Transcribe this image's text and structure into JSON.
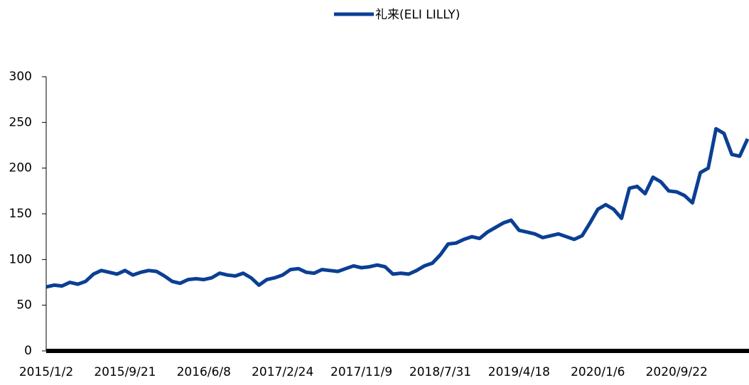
{
  "chart_data": {
    "type": "line",
    "categories": [
      "2015/1/2",
      null,
      null,
      null,
      null,
      null,
      null,
      null,
      null,
      null,
      "2015/9/21",
      null,
      null,
      null,
      null,
      null,
      null,
      null,
      null,
      null,
      "2016/6/8",
      null,
      null,
      null,
      null,
      null,
      null,
      null,
      null,
      null,
      "2017/2/24",
      null,
      null,
      null,
      null,
      null,
      null,
      null,
      null,
      null,
      "2017/11/9",
      null,
      null,
      null,
      null,
      null,
      null,
      null,
      null,
      null,
      "2018/7/31",
      null,
      null,
      null,
      null,
      null,
      null,
      null,
      null,
      null,
      "2019/4/18",
      null,
      null,
      null,
      null,
      null,
      null,
      null,
      null,
      null,
      "2020/1/6",
      null,
      null,
      null,
      null,
      null,
      null,
      null,
      null,
      null,
      "2020/9/22",
      null,
      null,
      null,
      null,
      null,
      null,
      null,
      null,
      null
    ],
    "series": [
      {
        "name": "礼来(ELI LILLY)",
        "color": "#0b3f94",
        "values": [
          70,
          72,
          71,
          75,
          73,
          76,
          84,
          88,
          86,
          84,
          88,
          83,
          86,
          88,
          87,
          82,
          76,
          74,
          78,
          79,
          78,
          80,
          85,
          83,
          82,
          85,
          80,
          72,
          78,
          80,
          83,
          89,
          90,
          86,
          85,
          89,
          88,
          87,
          90,
          93,
          91,
          92,
          94,
          92,
          84,
          85,
          84,
          88,
          93,
          96,
          105,
          117,
          118,
          122,
          125,
          123,
          130,
          135,
          140,
          143,
          132,
          130,
          128,
          124,
          126,
          128,
          125,
          122,
          126,
          140,
          155,
          160,
          155,
          145,
          178,
          180,
          172,
          190,
          185,
          175,
          174,
          170,
          162,
          195,
          200,
          243,
          238,
          215,
          213,
          232
        ]
      }
    ],
    "ylim": [
      0,
      300
    ],
    "yticks": [
      0,
      50,
      100,
      150,
      200,
      250,
      300
    ],
    "legend": "top"
  }
}
